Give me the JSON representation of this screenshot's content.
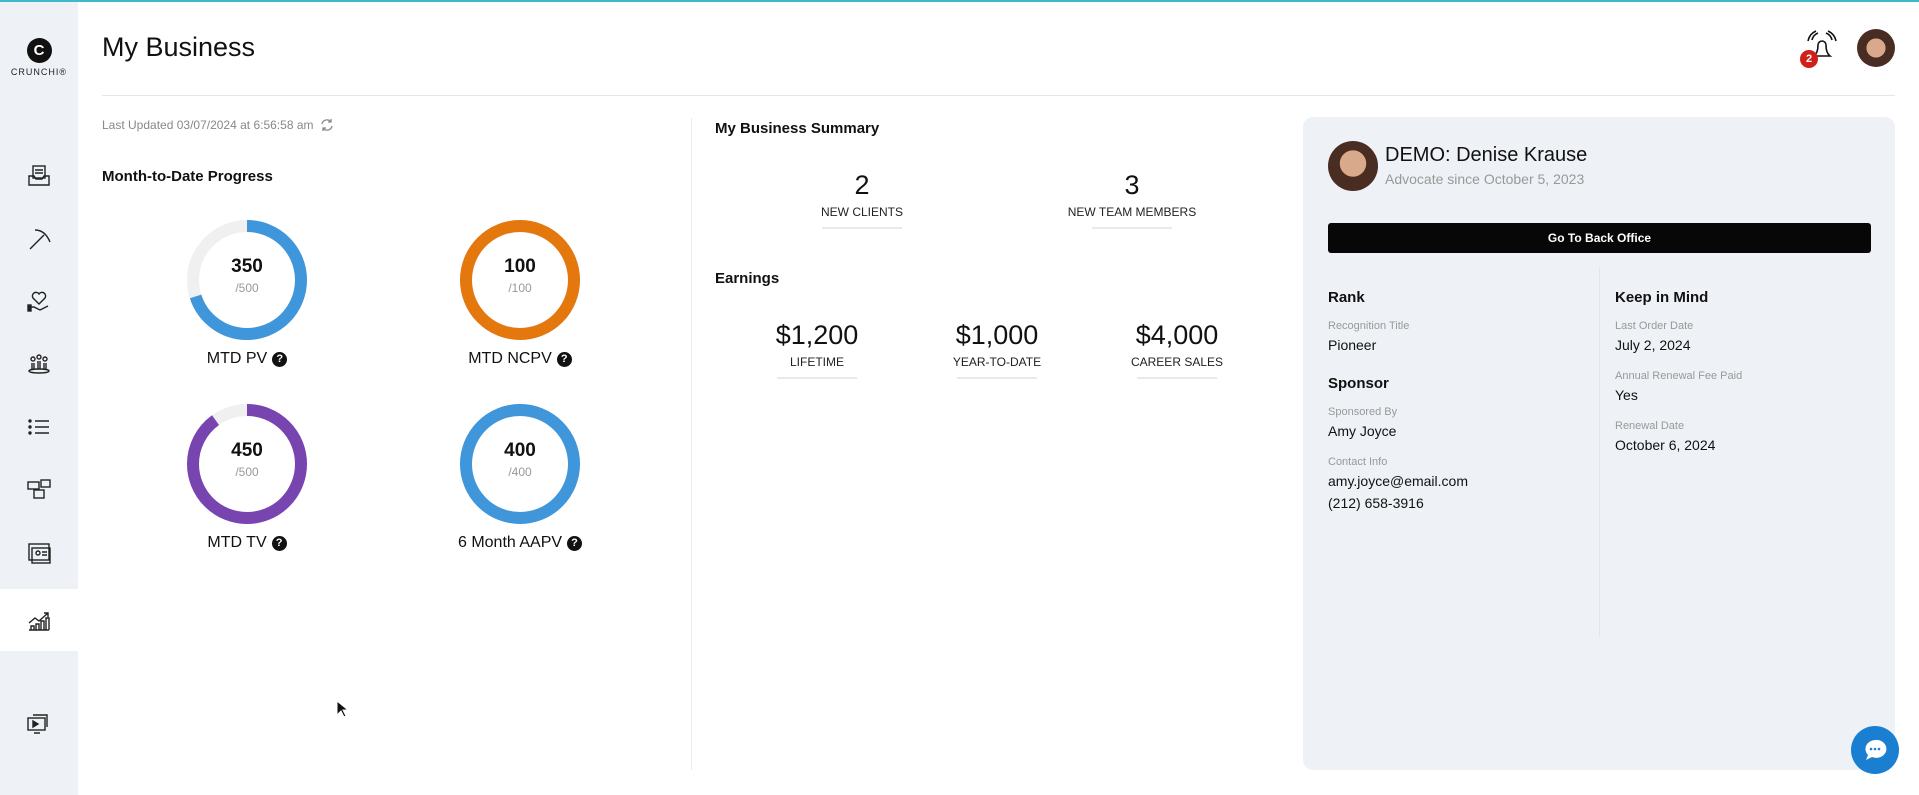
{
  "app": {
    "logo_letter": "C",
    "logo_text": "CRUNCHI®"
  },
  "sidebar": {
    "items": [
      {
        "icon": "inbox-icon"
      },
      {
        "icon": "pickaxe-icon"
      },
      {
        "icon": "heart-hand-icon"
      },
      {
        "icon": "team-icon"
      },
      {
        "icon": "list-icon"
      },
      {
        "icon": "media-icon"
      },
      {
        "icon": "presentation-icon"
      },
      {
        "icon": "chart-growth-icon",
        "active": true
      },
      {
        "icon": "video-library-icon"
      }
    ]
  },
  "header": {
    "title": "My Business",
    "notification_count": "2"
  },
  "progress": {
    "last_updated": "Last Updated 03/07/2024 at 6:56:58 am",
    "heading": "Month-to-Date Progress",
    "rings": [
      {
        "value": "350",
        "target": "/500",
        "label": "MTD PV",
        "fraction": 0.7,
        "color": "#3f96db"
      },
      {
        "value": "100",
        "target": "/100",
        "label": "MTD NCPV",
        "fraction": 1.0,
        "color": "#e4770d"
      },
      {
        "value": "450",
        "target": "/500",
        "label": "MTD TV",
        "fraction": 0.9,
        "color": "#7744b0"
      },
      {
        "value": "400",
        "target": "/400",
        "label": "6 Month AAPV",
        "fraction": 1.0,
        "color": "#3f96db"
      }
    ]
  },
  "summary": {
    "heading": "My Business Summary",
    "stats": [
      {
        "value": "2",
        "label": "NEW CLIENTS"
      },
      {
        "value": "3",
        "label": "NEW TEAM MEMBERS"
      }
    ],
    "earnings_heading": "Earnings",
    "earnings": [
      {
        "value": "$1,200",
        "label": "LIFETIME"
      },
      {
        "value": "$1,000",
        "label": "YEAR-TO-DATE"
      },
      {
        "value": "$4,000",
        "label": "CAREER SALES"
      }
    ]
  },
  "profile": {
    "name": "DEMO: Denise Krause",
    "since": "Advocate since October 5, 2023",
    "button": "Go To Back Office",
    "rank_heading": "Rank",
    "recognition_label": "Recognition Title",
    "recognition": "Pioneer",
    "sponsor_heading": "Sponsor",
    "sponsored_by_label": "Sponsored By",
    "sponsored_by": "Amy Joyce",
    "contact_label": "Contact Info",
    "email": "amy.joyce@email.com",
    "phone": "(212) 658-3916",
    "keep_heading": "Keep in Mind",
    "last_order_label": "Last Order Date",
    "last_order": "July 2, 2024",
    "renewal_fee_label": "Annual Renewal Fee Paid",
    "renewal_fee": "Yes",
    "renewal_date_label": "Renewal Date",
    "renewal_date": "October 6, 2024"
  }
}
